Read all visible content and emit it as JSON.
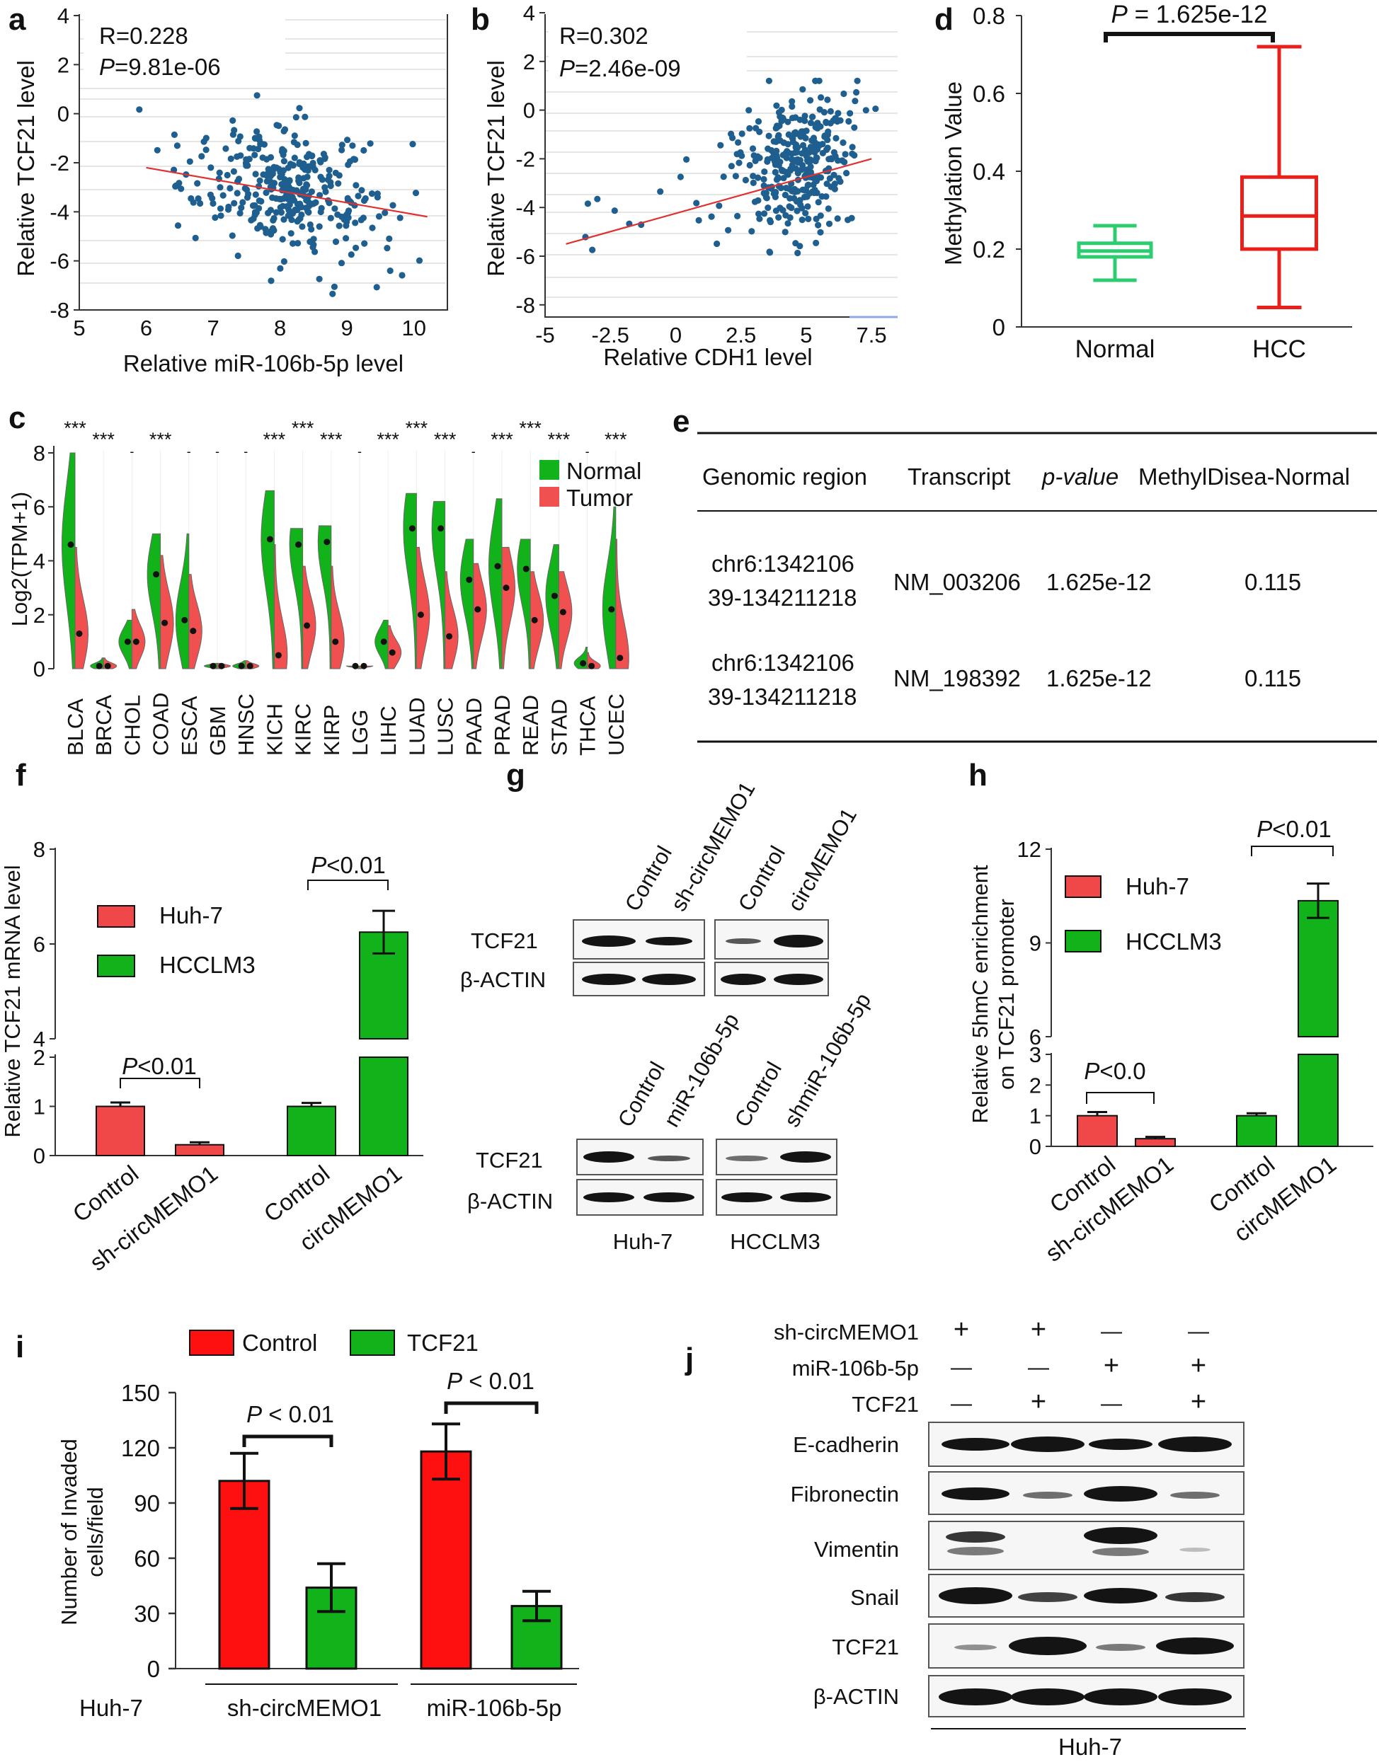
{
  "panels": {
    "a": {
      "label": "a"
    },
    "b": {
      "label": "b"
    },
    "c": {
      "label": "c"
    },
    "d": {
      "label": "d"
    },
    "e": {
      "label": "e"
    },
    "f": {
      "label": "f"
    },
    "g": {
      "label": "g"
    },
    "h": {
      "label": "h"
    },
    "i": {
      "label": "i"
    },
    "j": {
      "label": "j"
    }
  },
  "chart_data": [
    {
      "id": "a",
      "type": "scatter",
      "annotation_r": "R=0.228",
      "annotation_p_prefix": "P",
      "annotation_p_value": "=9.81e-06",
      "xlabel": "Relative miR-106b-5p level",
      "ylabel": "Relative TCF21 level",
      "xlim": [
        5,
        10.5
      ],
      "ylim": [
        -8,
        4
      ],
      "xticks": [
        5,
        6,
        7,
        8,
        9,
        10
      ],
      "yticks": [
        -8,
        -6,
        -4,
        -2,
        0,
        2,
        4
      ],
      "xtick_labels": [
        "5",
        "6",
        "7",
        "8",
        "9",
        "10"
      ],
      "ytick_labels": [
        "-8",
        "-6",
        "-4",
        "-2",
        "0",
        "2",
        "4"
      ],
      "trend": {
        "x": [
          6,
          10.2
        ],
        "y": [
          -2.2,
          -4.2
        ]
      },
      "point_color": "#1f5f8f",
      "line_color": "#e03030"
    },
    {
      "id": "b",
      "type": "scatter",
      "annotation_r": "R=0.302",
      "annotation_p_prefix": "P",
      "annotation_p_value": "=2.46e-09",
      "xlabel": "Relative CDH1 level",
      "ylabel": "Relative TCF21 level",
      "xlim": [
        -5,
        8.5
      ],
      "ylim": [
        -8.5,
        4
      ],
      "xticks": [
        -5,
        -2.5,
        0,
        2.5,
        5,
        7.5
      ],
      "yticks": [
        -8,
        -6,
        -4,
        -2,
        0,
        2,
        4
      ],
      "xtick_labels": [
        "-5",
        "-2.5",
        "0",
        "2.5",
        "5",
        "7.5"
      ],
      "ytick_labels": [
        "-8",
        "-6",
        "-4",
        "-2",
        "0",
        "2",
        "4"
      ],
      "trend": {
        "x": [
          -4.2,
          7.5
        ],
        "y": [
          -5.5,
          -2.0
        ]
      },
      "point_color": "#1f5f8f",
      "line_color": "#e03030"
    },
    {
      "id": "d",
      "type": "box",
      "ylabel": "Methylation Value",
      "ylim": [
        0,
        0.8
      ],
      "yticks": [
        0,
        0.2,
        0.4,
        0.6,
        0.8
      ],
      "ytick_labels": [
        "0",
        "0.2",
        "0.4",
        "0.6",
        "0.8"
      ],
      "categories": [
        "Normal",
        "HCC"
      ],
      "boxes": [
        {
          "name": "Normal",
          "min": 0.12,
          "q1": 0.18,
          "median": 0.195,
          "q3": 0.215,
          "max": 0.26,
          "color": "#2ecc71"
        },
        {
          "name": "HCC",
          "min": 0.05,
          "q1": 0.2,
          "median": 0.285,
          "q3": 0.385,
          "max": 0.72,
          "color": "#e8201a"
        }
      ],
      "p_prefix": "P",
      "p_value": " = 1.625e-12"
    },
    {
      "id": "c",
      "type": "violin",
      "ylabel": "Log2(TPM+1)",
      "ylim": [
        0,
        8
      ],
      "yticks": [
        0,
        2,
        4,
        6,
        8
      ],
      "ytick_labels": [
        "0",
        "2",
        "4",
        "6",
        "8"
      ],
      "categories": [
        "BLCA",
        "BRCA",
        "CHOL",
        "COAD",
        "ESCA",
        "GBM",
        "HNSC",
        "KICH",
        "KIRC",
        "KIRP",
        "LGG",
        "LIHC",
        "LUAD",
        "LUSC",
        "PAAD",
        "PRAD",
        "READ",
        "STAD",
        "THCA",
        "UCEC"
      ],
      "normal_median": [
        4.6,
        0.1,
        1.0,
        3.5,
        1.8,
        0.1,
        0.1,
        4.8,
        4.6,
        4.7,
        0.1,
        1.0,
        5.2,
        5.2,
        3.3,
        3.8,
        3.7,
        2.7,
        0.2,
        2.2
      ],
      "tumor_median": [
        1.3,
        0.1,
        1.0,
        1.7,
        1.4,
        0.1,
        0.1,
        0.5,
        1.6,
        1.0,
        0.1,
        0.6,
        2.0,
        1.2,
        2.2,
        3.0,
        1.8,
        2.1,
        0.1,
        0.4
      ],
      "normal_max": [
        8.0,
        0.4,
        1.8,
        5.0,
        5.0,
        0.2,
        0.3,
        6.6,
        5.2,
        5.3,
        0.1,
        1.8,
        6.5,
        6.2,
        4.8,
        6.3,
        4.8,
        4.6,
        0.8,
        6.0
      ],
      "tumor_max": [
        4.5,
        0.4,
        2.2,
        4.2,
        3.5,
        0.2,
        0.3,
        4.6,
        3.8,
        3.8,
        0.1,
        1.6,
        4.5,
        3.6,
        3.9,
        4.5,
        3.6,
        3.6,
        0.6,
        4.8
      ],
      "significance": [
        "***",
        "***",
        "-",
        "***",
        "-",
        "-",
        "-",
        "***",
        "***",
        "***",
        "-",
        "***",
        "***",
        "***",
        "-",
        "***",
        "***",
        "***",
        "-",
        "***"
      ],
      "legend": [
        {
          "name": "Normal",
          "color": "#12b21a"
        },
        {
          "name": "Tumor",
          "color": "#f05050"
        }
      ]
    },
    {
      "id": "f",
      "type": "bar",
      "ylabel": "Relative TCF21 mRNA level",
      "ylim_lower": [
        0,
        2
      ],
      "ylim_upper": [
        4,
        8
      ],
      "yticks_lower": [
        0,
        1,
        2
      ],
      "yticks_upper": [
        4,
        6,
        8
      ],
      "ytick_labels_lower": [
        "0",
        "1",
        "2"
      ],
      "ytick_labels_upper": [
        "4",
        "6",
        "8"
      ],
      "categories": [
        "Control",
        "sh-circMEMO1",
        "Control",
        "circMEMO1"
      ],
      "values": [
        1.0,
        0.22,
        1.0,
        6.25
      ],
      "errors": [
        0.08,
        0.05,
        0.07,
        0.45
      ],
      "colors": [
        "#f04848",
        "#f04848",
        "#12b21a",
        "#12b21a"
      ],
      "legend": [
        {
          "name": "Huh-7",
          "color": "#f04848"
        },
        {
          "name": "HCCLM3",
          "color": "#12b21a"
        }
      ],
      "p_left": "<0.01",
      "p_right": "<0.01"
    },
    {
      "id": "h",
      "type": "bar",
      "ylabel_line1": "Relative 5hmC enrichment",
      "ylabel_line2": "on TCF21 promoter",
      "ylim_lower": [
        0,
        3
      ],
      "ylim_upper": [
        6,
        12
      ],
      "yticks_lower": [
        0,
        1,
        2,
        3
      ],
      "yticks_upper": [
        6,
        9,
        12
      ],
      "ytick_labels_lower": [
        "0",
        "1",
        "2",
        "3"
      ],
      "ytick_labels_upper": [
        "6",
        "9",
        "12"
      ],
      "categories": [
        "Control",
        "sh-circMEMO1",
        "Control",
        "circMEMO1"
      ],
      "values": [
        1.0,
        0.25,
        1.0,
        10.35
      ],
      "errors": [
        0.12,
        0.06,
        0.08,
        0.55
      ],
      "colors": [
        "#f04848",
        "#f04848",
        "#12b21a",
        "#12b21a"
      ],
      "legend": [
        {
          "name": "Huh-7",
          "color": "#f04848"
        },
        {
          "name": "HCCLM3",
          "color": "#12b21a"
        }
      ],
      "p_left": "<0.0",
      "p_right": "<0.01"
    },
    {
      "id": "i",
      "type": "bar",
      "ylabel_line1": "Number of Invaded",
      "ylabel_line2": "cells/field",
      "ylim": [
        0,
        150
      ],
      "yticks": [
        0,
        30,
        60,
        90,
        120,
        150
      ],
      "ytick_labels": [
        "0",
        "30",
        "60",
        "90",
        "120",
        "150"
      ],
      "groups": [
        "sh-circMEMO1",
        "miR-106b-5p"
      ],
      "row_label": "Huh-7",
      "series": [
        {
          "name": "Control",
          "values": [
            102,
            118
          ],
          "errors": [
            15,
            15
          ],
          "color": "#ff1010"
        },
        {
          "name": "TCF21",
          "values": [
            44,
            34
          ],
          "errors": [
            13,
            8
          ],
          "color": "#12b21a"
        }
      ],
      "p_prefix": "P",
      "p_value": " < 0.01"
    }
  ],
  "table_e": {
    "headers": [
      "Genomic region",
      "Transcript",
      "p-value",
      "MethylDisea-Normal"
    ],
    "rows": [
      {
        "region_line1": "chr6:1342106",
        "region_line2": "39-134211218",
        "transcript": "NM_003206",
        "pvalue": "1.625e-12",
        "diff": "0.115"
      },
      {
        "region_line1": "chr6:1342106",
        "region_line2": "39-134211218",
        "transcript": "NM_198392",
        "pvalue": "1.625e-12",
        "diff": "0.115"
      }
    ]
  },
  "blot_g": {
    "top_lanes": [
      "Control",
      "sh-circMEMO1",
      "Control",
      "circMEMO1"
    ],
    "bottom_lanes": [
      "Control",
      "miR-106b-5p",
      "Control",
      "shmiR-106b-5p"
    ],
    "rows": [
      "TCF21",
      "β-ACTIN"
    ],
    "cell_lines": [
      "Huh-7",
      "HCCLM3"
    ]
  },
  "blot_j": {
    "conditions": [
      {
        "name": "sh-circMEMO1",
        "marks": [
          "+",
          "+",
          "—",
          "—"
        ]
      },
      {
        "name": "miR-106b-5p",
        "marks": [
          "—",
          "—",
          "+",
          "+"
        ]
      },
      {
        "name": "TCF21",
        "marks": [
          "—",
          "+",
          "—",
          "+"
        ]
      }
    ],
    "rows": [
      "E-cadherin",
      "Fibronectin",
      "Vimentin",
      "Snail",
      "TCF21",
      "β-ACTIN"
    ],
    "cell_line": "Huh-7"
  }
}
